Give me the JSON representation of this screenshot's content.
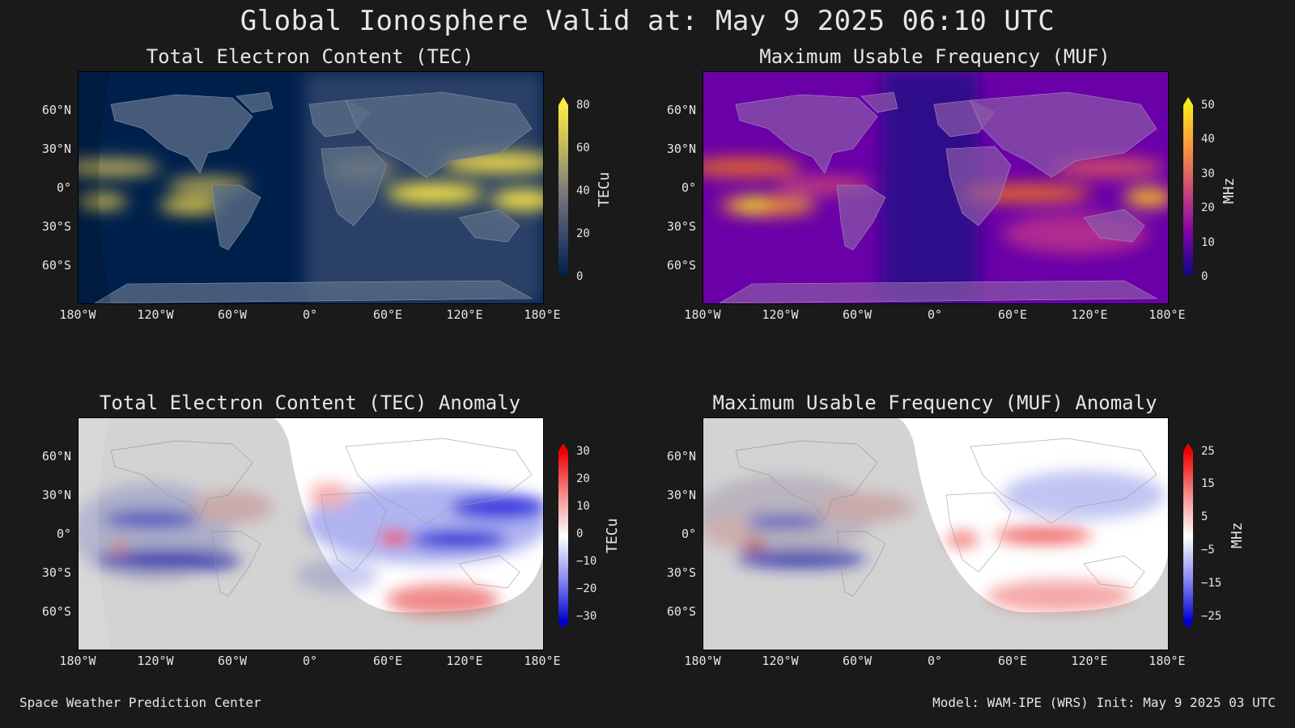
{
  "title": "Global Ionosphere Valid at: May 9 2025 06:10 UTC",
  "footer": {
    "left": "Space Weather Prediction Center",
    "right": "Model: WAM-IPE (WRS) Init: May 9 2025 03 UTC"
  },
  "lat_ticks": [
    "60°N",
    "30°N",
    "0°",
    "30°S",
    "60°S"
  ],
  "lon_ticks": [
    "180°W",
    "120°W",
    "60°W",
    "0°",
    "60°E",
    "120°E",
    "180°E"
  ],
  "colors": {
    "background": "#1a1a1a",
    "tec_low": "#00204c",
    "tec_high": "#ffea46",
    "muf_low": "#1a0a6e",
    "muf_high": "#f8e81d",
    "anom_neg": "#0000cc",
    "anom_pos": "#ee0000"
  },
  "panels": [
    {
      "id": "tec",
      "title": "Total Electron Content (TEC)",
      "colormap": "cividis",
      "colorbar_label": "TECu",
      "colorbar_ticks": [
        "80",
        "60",
        "40",
        "20",
        "0"
      ],
      "colorbar_range": [
        0,
        80
      ]
    },
    {
      "id": "muf",
      "title": "Maximum Usable Frequency (MUF)",
      "colormap": "plasma",
      "colorbar_label": "MHz",
      "colorbar_ticks": [
        "50",
        "40",
        "30",
        "20",
        "10",
        "0"
      ],
      "colorbar_range": [
        0,
        50
      ]
    },
    {
      "id": "tec-anom",
      "title": "Total Electron Content (TEC) Anomaly",
      "colormap": "bwr",
      "colorbar_label": "TECu",
      "colorbar_ticks": [
        "30",
        "20",
        "10",
        "0",
        "−10",
        "−20",
        "−30"
      ],
      "colorbar_range": [
        -30,
        30
      ]
    },
    {
      "id": "muf-anom",
      "title": "Maximum Usable Frequency (MUF) Anomaly",
      "colormap": "bwr",
      "colorbar_label": "MHz",
      "colorbar_ticks": [
        "25",
        "15",
        "5",
        "−5",
        "−15",
        "−25"
      ],
      "colorbar_range": [
        -25,
        25
      ]
    }
  ]
}
